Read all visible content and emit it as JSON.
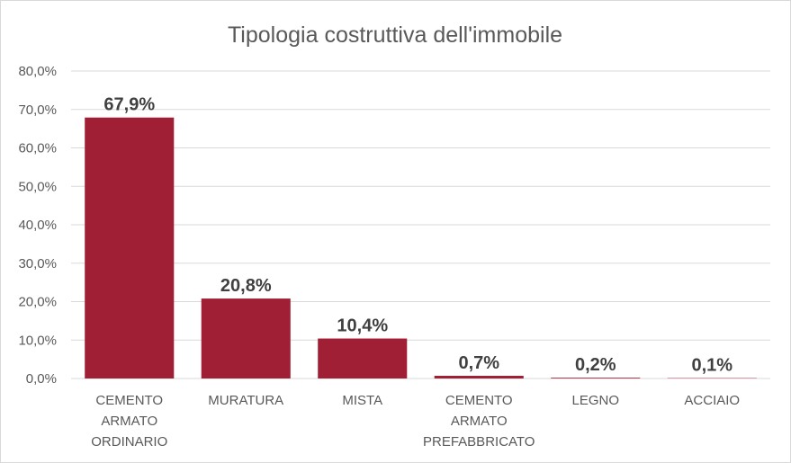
{
  "chart_data": {
    "type": "bar",
    "title": "Tipologia costruttiva dell'immobile",
    "xlabel": "",
    "ylabel": "",
    "categories": [
      [
        "CEMENTO",
        "ARMATO",
        "ORDINARIO"
      ],
      [
        "MURATURA"
      ],
      [
        "MISTA"
      ],
      [
        "CEMENTO",
        "ARMATO",
        "PREFABBRICATO"
      ],
      [
        "LEGNO"
      ],
      [
        "ACCIAIO"
      ]
    ],
    "values": [
      67.9,
      20.8,
      10.4,
      0.7,
      0.2,
      0.1
    ],
    "data_labels": [
      "67,9%",
      "20,8%",
      "10,4%",
      "0,7%",
      "0,2%",
      "0,1%"
    ],
    "ylim": [
      0,
      80
    ],
    "yticks": [
      {
        "value": 0,
        "label": "0,0%"
      },
      {
        "value": 10,
        "label": "10,0%"
      },
      {
        "value": 20,
        "label": "20,0%"
      },
      {
        "value": 30,
        "label": "30,0%"
      },
      {
        "value": 40,
        "label": "40,0%"
      },
      {
        "value": 50,
        "label": "50,0%"
      },
      {
        "value": 60,
        "label": "60,0%"
      },
      {
        "value": 70,
        "label": "70,0%"
      },
      {
        "value": 80,
        "label": "80,0%"
      }
    ],
    "grid": true,
    "legend": "none",
    "bar_color": "#a11f35"
  }
}
